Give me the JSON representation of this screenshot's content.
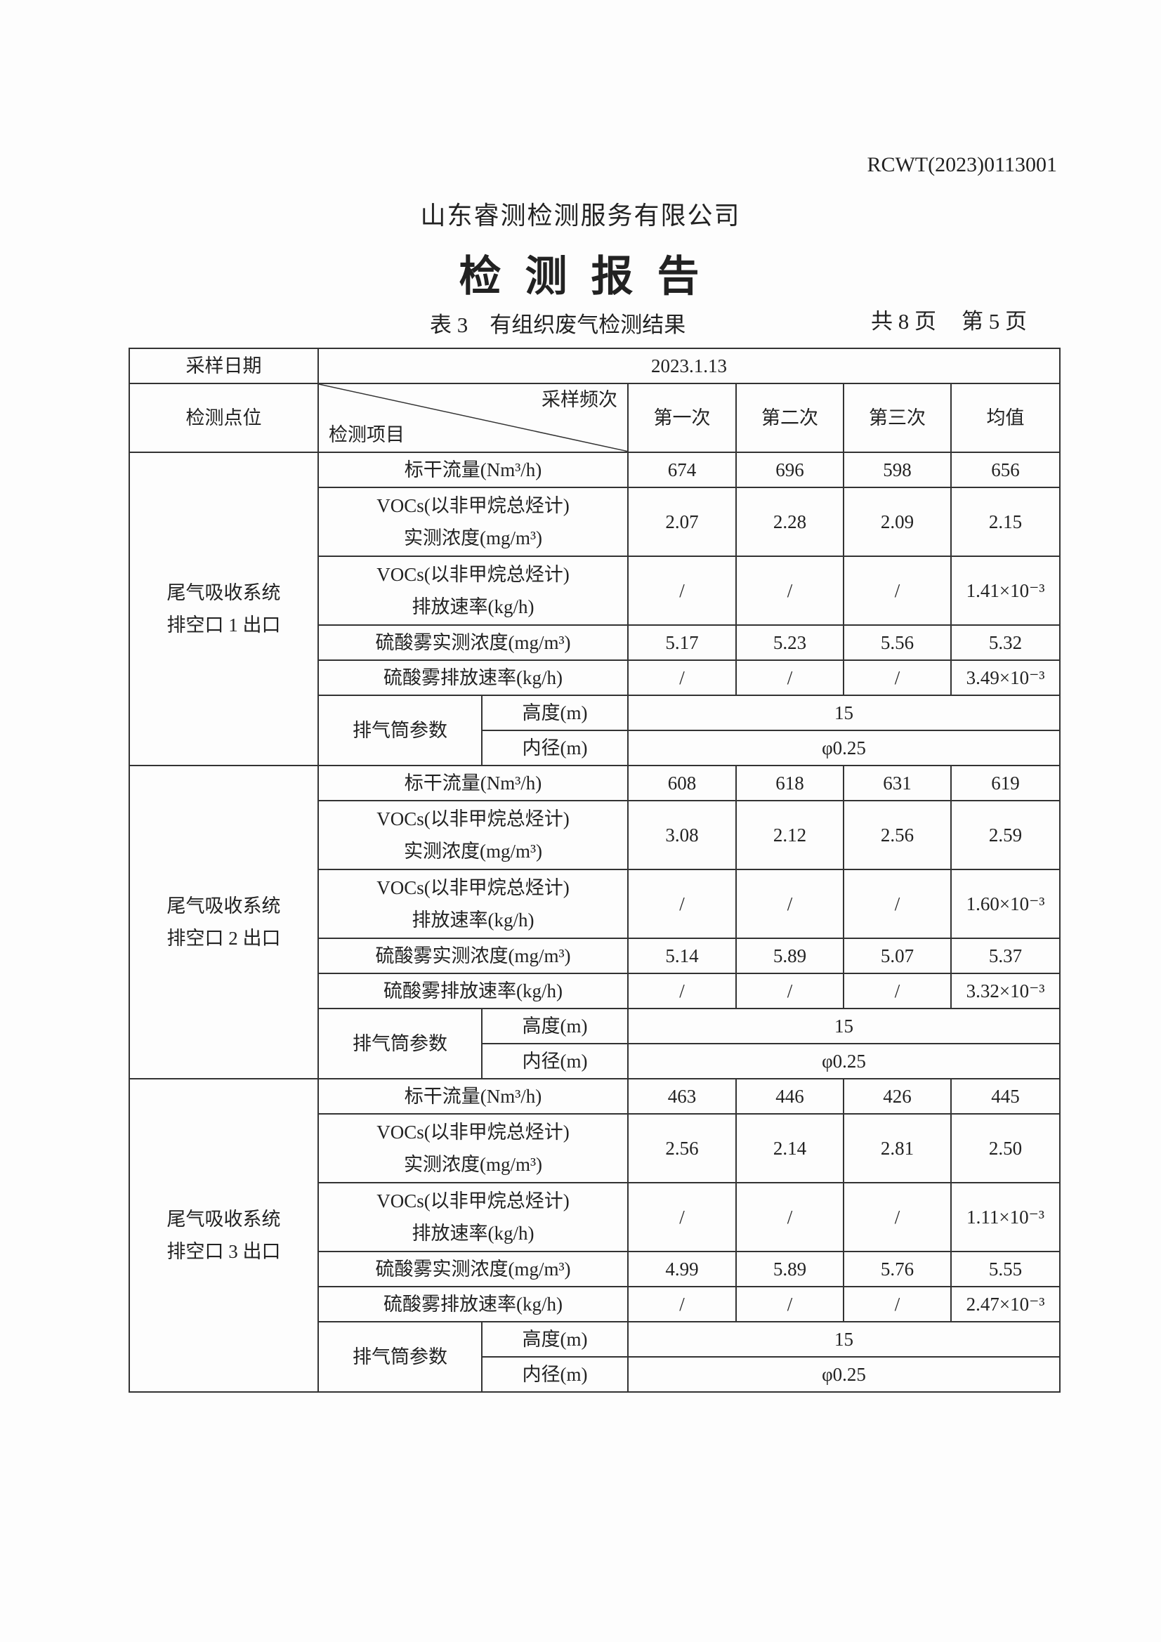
{
  "header": {
    "doc_no": "RCWT(2023)0113001",
    "company": "山东睿测检测服务有限公司",
    "title": "检测报告",
    "caption": "表 3　有组织废气检测结果",
    "total_pages": "共 8 页",
    "page": "第 5 页"
  },
  "table": {
    "date_label": "采样日期",
    "date": "2023.1.13",
    "point_label": "检测点位",
    "freq_label": "采样频次",
    "item_label": "检测项目",
    "cols": [
      "第一次",
      "第二次",
      "第三次",
      "均值"
    ],
    "item_flow": "标干流量(Nm³/h)",
    "item_voc_1": "VOCs(以非甲烷总烃计)",
    "item_voc_conc": "实测浓度(mg/m³)",
    "item_voc_rate": "排放速率(kg/h)",
    "item_h2so4_conc": "硫酸雾实测浓度(mg/m³)",
    "item_h2so4_rate": "硫酸雾排放速率(kg/h)",
    "stack_label": "排气筒参数",
    "height_label": "高度(m)",
    "diam_label": "内径(m)",
    "blocks": [
      {
        "point_1": "尾气吸收系统",
        "point_2": "排空口 1 出口",
        "flow": [
          "674",
          "696",
          "598",
          "656"
        ],
        "voc_conc": [
          "2.07",
          "2.28",
          "2.09",
          "2.15"
        ],
        "voc_rate": [
          "/",
          "/",
          "/",
          "1.41×10⁻³"
        ],
        "h2so4_conc": [
          "5.17",
          "5.23",
          "5.56",
          "5.32"
        ],
        "h2so4_rate": [
          "/",
          "/",
          "/",
          "3.49×10⁻³"
        ],
        "height": "15",
        "diam": "φ0.25"
      },
      {
        "point_1": "尾气吸收系统",
        "point_2": "排空口 2 出口",
        "flow": [
          "608",
          "618",
          "631",
          "619"
        ],
        "voc_conc": [
          "3.08",
          "2.12",
          "2.56",
          "2.59"
        ],
        "voc_rate": [
          "/",
          "/",
          "/",
          "1.60×10⁻³"
        ],
        "h2so4_conc": [
          "5.14",
          "5.89",
          "5.07",
          "5.37"
        ],
        "h2so4_rate": [
          "/",
          "/",
          "/",
          "3.32×10⁻³"
        ],
        "height": "15",
        "diam": "φ0.25"
      },
      {
        "point_1": "尾气吸收系统",
        "point_2": "排空口 3 出口",
        "flow": [
          "463",
          "446",
          "426",
          "445"
        ],
        "voc_conc": [
          "2.56",
          "2.14",
          "2.81",
          "2.50"
        ],
        "voc_rate": [
          "/",
          "/",
          "/",
          "1.11×10⁻³"
        ],
        "h2so4_conc": [
          "4.99",
          "5.89",
          "5.76",
          "5.55"
        ],
        "h2so4_rate": [
          "/",
          "/",
          "/",
          "2.47×10⁻³"
        ],
        "height": "15",
        "diam": "φ0.25"
      }
    ]
  }
}
